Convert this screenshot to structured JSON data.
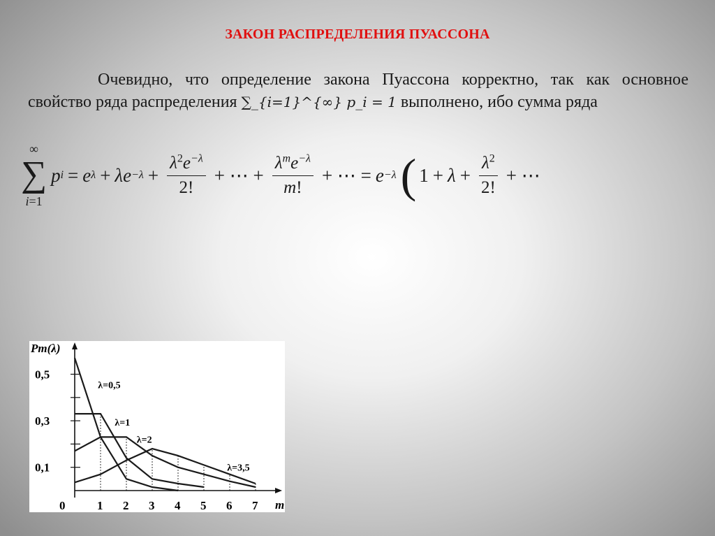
{
  "slide": {
    "title": "ЗАКОН РАСПРЕДЕЛЕНИЯ ПУАССОНА",
    "paragraph_part1": "Очевидно, что определение закона Пуассона корректно, так как основное свойство ряда распределения ",
    "inline_formula": "∑_{i=1}^{∞} p_i = 1",
    "paragraph_part2": " выполнено, ибо сумма ряда",
    "formula": "∑_{i=1}^{∞} p_i = e^λ + λe^{−λ} + λ²e^{−λ}/2! + ⋯ + λ^m e^{−λ}/m! + ⋯ = e^{−λ}(1 + λ + λ²/2! + ⋯"
  },
  "chart_data": {
    "type": "line",
    "ylabel": "Pm(λ)",
    "xlabel": "m",
    "x_ticks": [
      "0",
      "1",
      "2",
      "3",
      "4",
      "5",
      "6",
      "7"
    ],
    "y_ticks": [
      "0,1",
      "0,3",
      "0,5"
    ],
    "xlim": [
      0,
      7.5
    ],
    "ylim": [
      0,
      0.6
    ],
    "series": [
      {
        "name": "λ=0,5",
        "x": [
          0,
          1,
          2,
          3,
          4
        ],
        "values": [
          0.57,
          0.23,
          0.05,
          0.015,
          0.0
        ]
      },
      {
        "name": "λ=1",
        "x": [
          0,
          1,
          2,
          3,
          4,
          5
        ],
        "values": [
          0.33,
          0.33,
          0.14,
          0.05,
          0.03,
          0.015
        ]
      },
      {
        "name": "λ=2",
        "x": [
          0,
          1,
          2,
          3,
          4,
          5,
          6,
          7
        ],
        "values": [
          0.17,
          0.23,
          0.23,
          0.15,
          0.1,
          0.07,
          0.04,
          0.015
        ]
      },
      {
        "name": "λ=3,5",
        "x": [
          0,
          1,
          2,
          3,
          4,
          5,
          6,
          7
        ],
        "values": [
          0.035,
          0.07,
          0.13,
          0.18,
          0.15,
          0.11,
          0.07,
          0.03
        ]
      }
    ],
    "colors": {
      "lines": "#1a1a1a",
      "background": "#ffffff"
    }
  },
  "colors": {
    "title": "#e01010",
    "text": "#1a1a1a"
  }
}
